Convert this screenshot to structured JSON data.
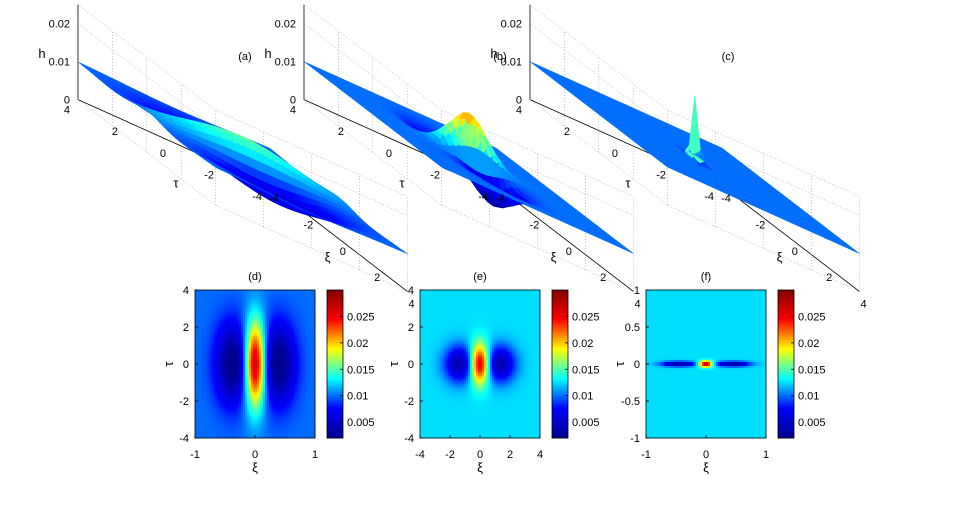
{
  "chart_data": [
    {
      "id": "a",
      "type": "surface",
      "title": "(a)",
      "zlabel": "h",
      "xlabel": "ξ",
      "ylabel": "τ",
      "zticks": [
        "0",
        "0.01",
        "0.02"
      ],
      "tau_ticks": [
        "4",
        "2",
        "0",
        "-2",
        "-4"
      ],
      "xi_ticks": [
        "-4",
        "-2",
        "0",
        "2",
        "4"
      ],
      "params": {
        "peak": 0.024,
        "sx": 0.9,
        "sy": 2.0,
        "dip": 0.007,
        "dx": 1.3,
        "dsx": 1.3,
        "dsy": 1.9,
        "base": 0.01
      }
    },
    {
      "id": "b",
      "type": "surface",
      "title": "(b)",
      "zlabel": "h",
      "xlabel": "ξ",
      "ylabel": "τ",
      "zticks": [
        "0",
        "0.01",
        "0.02"
      ],
      "tau_ticks": [
        "4",
        "2",
        "0",
        "-2",
        "-4"
      ],
      "xi_ticks": [
        "-4",
        "-2",
        "0",
        "2",
        "4"
      ],
      "params": {
        "peak": 0.026,
        "sx": 0.45,
        "sy": 0.75,
        "dip": 0.008,
        "dx": 1.3,
        "dsx": 0.8,
        "dsy": 0.7,
        "base": 0.01
      }
    },
    {
      "id": "c",
      "type": "surface",
      "title": "(c)",
      "zlabel": "h",
      "xlabel": "ξ",
      "ylabel": "τ",
      "zticks": [
        "0",
        "0.01",
        "0.02"
      ],
      "tau_ticks": [
        "4",
        "2",
        "0",
        "-2",
        "-4"
      ],
      "xi_ticks": [
        "-4",
        "-2",
        "0",
        "2",
        "4"
      ],
      "params": {
        "peak": 0.028,
        "sx": 0.12,
        "sy": 0.12,
        "dip": 0.004,
        "dx": 0.35,
        "dsx": 0.2,
        "dsy": 0.06,
        "base": 0.01
      }
    },
    {
      "id": "d",
      "type": "heatmap",
      "title": "(d)",
      "xlabel": "ξ",
      "ylabel": "τ",
      "xlim": [
        -1,
        1
      ],
      "ylim": [
        -4,
        4
      ],
      "xticks": [
        "-1",
        "0",
        "1"
      ],
      "yticks": [
        "4",
        "2",
        "0",
        "-2",
        "-4"
      ],
      "colorbar_ticks": [
        "0.025",
        "0.02",
        "0.015",
        "0.01",
        "0.005"
      ],
      "params": {
        "peak": 0.029,
        "sx": 0.12,
        "sy": 1.6,
        "dip": 0.009,
        "dx": 0.38,
        "dsx": 0.2,
        "dsy": 1.5,
        "base": 0.01
      }
    },
    {
      "id": "e",
      "type": "heatmap",
      "title": "(e)",
      "xlabel": "ξ",
      "ylabel": "τ",
      "xlim": [
        -4,
        4
      ],
      "ylim": [
        -4,
        4
      ],
      "xticks": [
        "-4",
        "-2",
        "0",
        "2",
        "4"
      ],
      "yticks": [
        "4",
        "2",
        "0",
        "-2",
        "-4"
      ],
      "colorbar_ticks": [
        "0.025",
        "0.02",
        "0.015",
        "0.01",
        "0.005"
      ],
      "params": {
        "peak": 0.029,
        "sx": 0.45,
        "sy": 0.75,
        "dip": 0.009,
        "dx": 1.3,
        "dsx": 0.75,
        "dsy": 0.7,
        "base": 0.0125
      }
    },
    {
      "id": "f",
      "type": "heatmap",
      "title": "(f)",
      "xlabel": "ξ",
      "ylabel": "τ",
      "xlim": [
        -1,
        1
      ],
      "ylim": [
        -1,
        1
      ],
      "xticks": [
        "-1",
        "0",
        "1"
      ],
      "yticks": [
        "1",
        "0.5",
        "0",
        "-0.5",
        "-1"
      ],
      "colorbar_ticks": [
        "0.025",
        "0.02",
        "0.015",
        "0.01",
        "0.005"
      ],
      "params": {
        "peak": 0.029,
        "sx": 0.08,
        "sy": 0.03,
        "dip": 0.01,
        "dx": 0.45,
        "dsx": 0.2,
        "dsy": 0.025,
        "base": 0.0125
      }
    }
  ],
  "colormap": [
    "#00008f",
    "#0000ff",
    "#00ffff",
    "#ffff00",
    "#ff0000",
    "#800000"
  ],
  "clim": [
    0.002,
    0.03
  ]
}
